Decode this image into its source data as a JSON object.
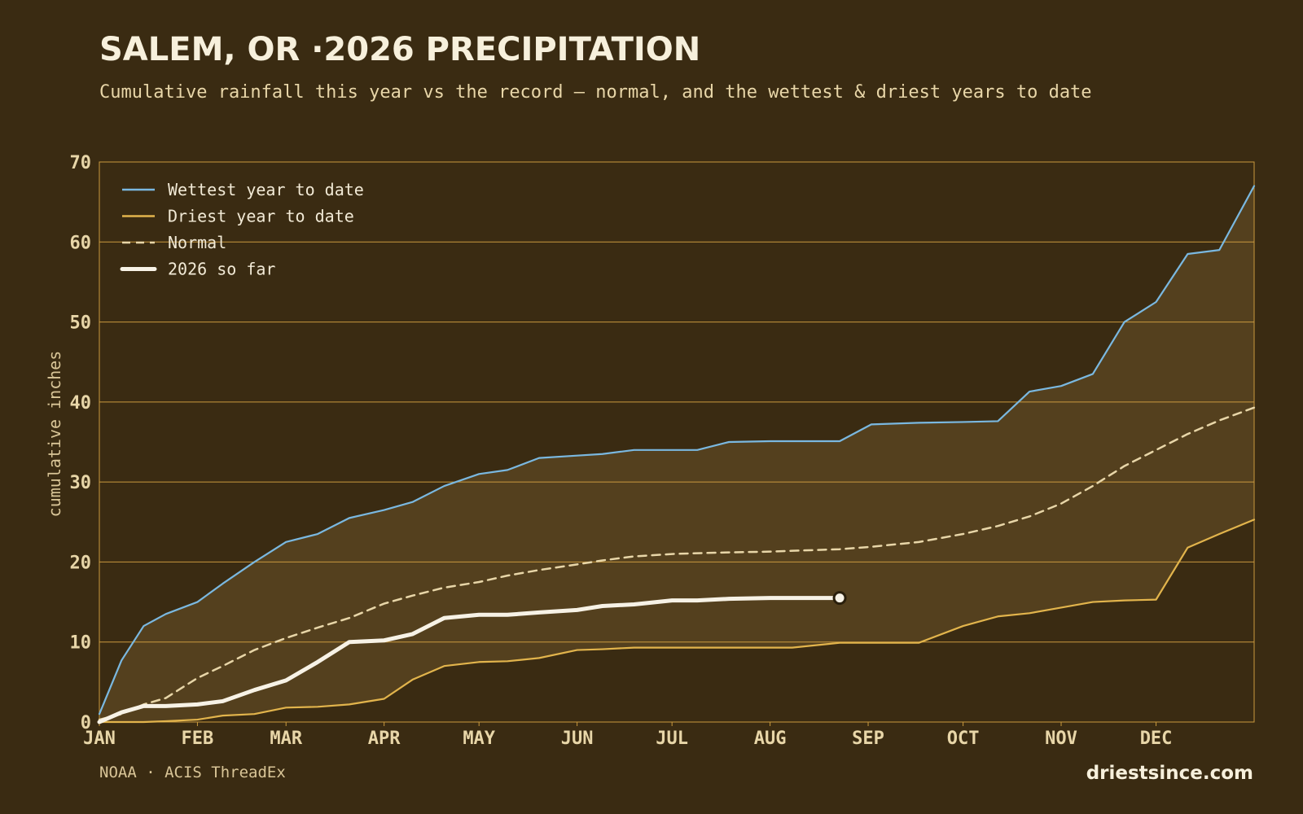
{
  "chart_data": {
    "type": "line",
    "title": "SALEM, OR ·2026 PRECIPITATION",
    "subtitle": "Cumulative rainfall this year vs the record — normal, and the wettest & driest years to date",
    "y_label": "cumulative inches",
    "source": "NOAA · ACIS ThreadEx",
    "brand": "driestsince.com",
    "x": [
      1,
      8,
      15,
      22,
      32,
      40,
      50,
      60,
      70,
      80,
      91,
      100,
      110,
      121,
      130,
      140,
      152,
      160,
      170,
      182,
      190,
      200,
      213,
      220,
      235,
      245,
      260,
      274,
      285,
      295,
      305,
      315,
      325,
      335,
      345,
      355,
      366
    ],
    "xlim": [
      1,
      366
    ],
    "xticks": [
      {
        "value": 1,
        "label": "JAN"
      },
      {
        "value": 32,
        "label": "FEB"
      },
      {
        "value": 60,
        "label": "MAR"
      },
      {
        "value": 91,
        "label": "APR"
      },
      {
        "value": 121,
        "label": "MAY"
      },
      {
        "value": 152,
        "label": "JUN"
      },
      {
        "value": 182,
        "label": "JUL"
      },
      {
        "value": 213,
        "label": "AUG"
      },
      {
        "value": 244,
        "label": "SEP"
      },
      {
        "value": 274,
        "label": "OCT"
      },
      {
        "value": 305,
        "label": "NOV"
      },
      {
        "value": 335,
        "label": "DEC"
      }
    ],
    "ylim": [
      0,
      70
    ],
    "yticks": [
      0,
      10,
      20,
      30,
      40,
      50,
      60,
      70
    ],
    "grid": true,
    "legend": "upper left",
    "band_color": "#54401e",
    "series": [
      {
        "name": "Wettest year to date",
        "color": "#7ab8e0",
        "values": [
          1,
          7.7,
          12,
          13.5,
          15,
          17.3,
          20,
          22.5,
          23.5,
          25.5,
          26.5,
          27.5,
          29.5,
          31,
          31.5,
          33,
          33.3,
          33.5,
          34,
          34,
          34,
          35,
          35.1,
          35.1,
          35.1,
          37.2,
          37.4,
          37.5,
          37.6,
          41.3,
          42,
          43.5,
          50,
          52.5,
          58.5,
          59,
          67
        ]
      },
      {
        "name": "Driest year to date",
        "color": "#e2b44c",
        "values": [
          0,
          0,
          0,
          0.1,
          0.3,
          0.8,
          1,
          1.8,
          1.9,
          2.2,
          2.9,
          5.3,
          7,
          7.5,
          7.6,
          8,
          9,
          9.1,
          9.3,
          9.3,
          9.3,
          9.3,
          9.3,
          9.3,
          9.9,
          9.9,
          9.9,
          12,
          13.2,
          13.6,
          14.3,
          15,
          15.2,
          15.3,
          21.8,
          23.5,
          25.3
        ]
      },
      {
        "name": "Normal",
        "color": "#e8d6a8",
        "dashed": true,
        "values": [
          0.3,
          1,
          2.2,
          3,
          5.5,
          7,
          9,
          10.5,
          11.8,
          13,
          14.8,
          15.8,
          16.8,
          17.5,
          18.3,
          19,
          19.7,
          20.2,
          20.7,
          21,
          21.1,
          21.2,
          21.3,
          21.4,
          21.6,
          21.9,
          22.5,
          23.5,
          24.5,
          25.7,
          27.3,
          29.5,
          32,
          34,
          36,
          37.7,
          39.3
        ]
      },
      {
        "name": "2026 so far",
        "color": "#f7f2e6",
        "highlight": true,
        "values": [
          0,
          1.2,
          2,
          2,
          2.2,
          2.6,
          4,
          5.2,
          7.5,
          10,
          10.2,
          11,
          13,
          13.4,
          13.4,
          13.7,
          14,
          14.5,
          14.7,
          15.2,
          15.2,
          15.4,
          15.5,
          15.5,
          15.5,
          null,
          null,
          null,
          null,
          null,
          null,
          null,
          null,
          null,
          null,
          null,
          null
        ]
      }
    ]
  }
}
